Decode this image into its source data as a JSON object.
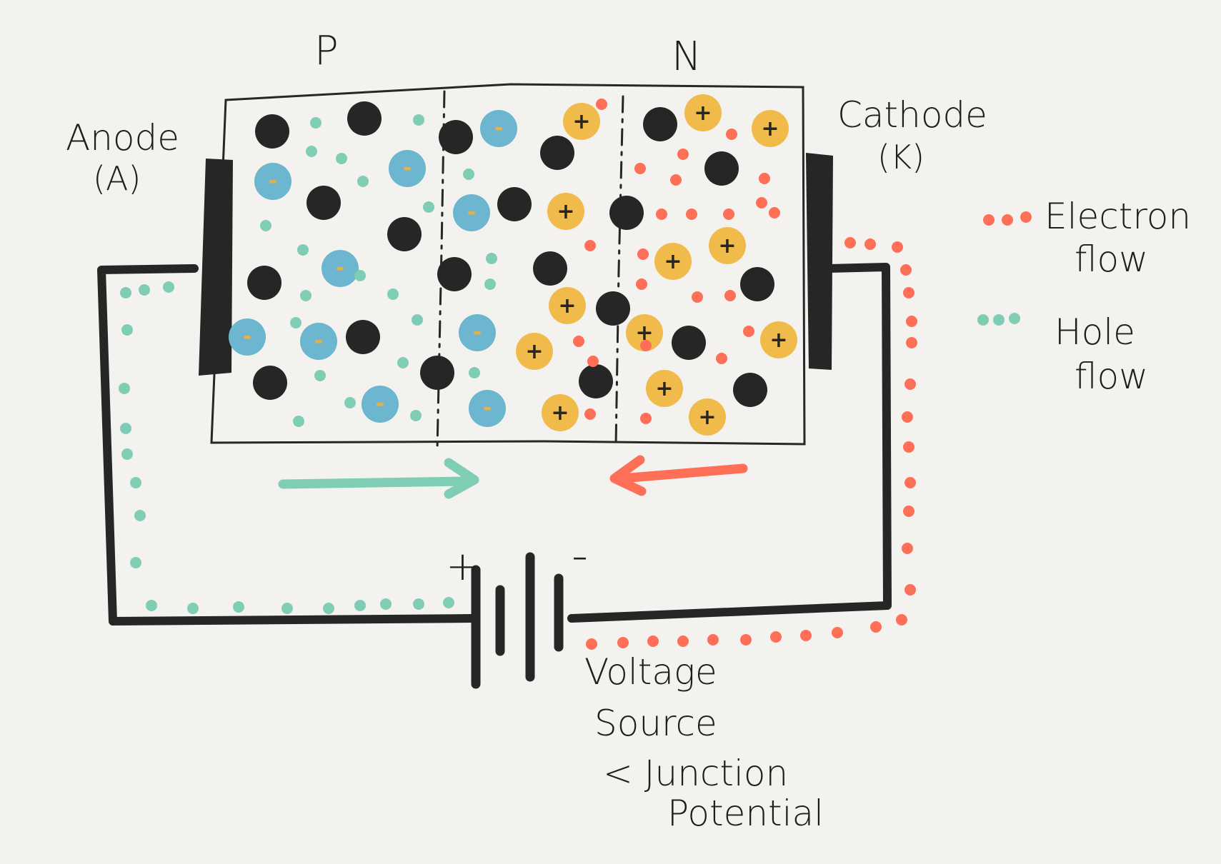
{
  "labels": {
    "p_region": "P",
    "n_region": "N",
    "anode": "Anode",
    "anode_symbol": "(A)",
    "cathode": "Cathode",
    "cathode_symbol": "(K)",
    "battery_positive": "+",
    "battery_negative": "-",
    "voltage_line1": "Voltage",
    "voltage_line2": "Source",
    "voltage_line3": "< Junction",
    "voltage_line4": "Potential"
  },
  "legend": {
    "electron_line1": "Electron",
    "electron_line2": "flow",
    "hole_line1": "Hole",
    "hole_line2": "flow"
  },
  "charges": {
    "negative_ion_sign": "-",
    "positive_ion_sign": "+"
  },
  "colors": {
    "background": "#f4f2ef",
    "ink": "#262626",
    "hole": "#7fcdb4",
    "electron": "#ff6f57",
    "negative_ion": "#6cb6cf",
    "positive_ion": "#f1bb4b",
    "ion_mark": "#e8b243"
  }
}
